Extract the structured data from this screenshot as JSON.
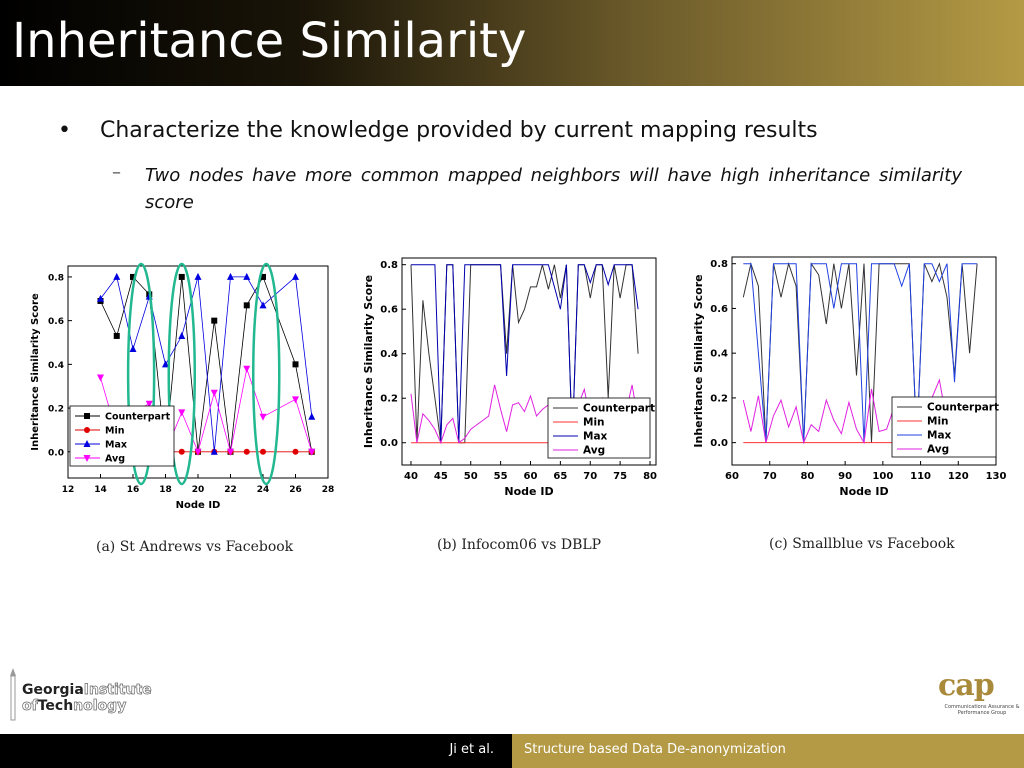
{
  "slide": {
    "title": "Inheritance Similarity",
    "bullet": "Characterize the knowledge provided by current mapping results",
    "bullet_marker": "•",
    "sub_bullet": "Two nodes have more common mapped neighbors will have high inheritance similarity score",
    "sub_bullet_marker": "–"
  },
  "footer": {
    "author": "Ji et al.",
    "title": "Structure based Data De-anonymization"
  },
  "logos": {
    "gt_line1_a": "Georgia",
    "gt_line1_b": "Institute",
    "gt_line2_a": "of",
    "gt_line2_b": "Tech",
    "gt_line2_c": "nology",
    "cap_word": "cap",
    "cap_sub": "Communications Assurance & Performance Group"
  },
  "chart_data": [
    {
      "type": "line",
      "caption": "(a)  St Andrews vs Facebook",
      "xlabel": "Node ID",
      "ylabel": "Inheritance Similarity Score",
      "xlim": [
        12,
        28
      ],
      "ylim": [
        -0.12,
        0.85
      ],
      "xticks": [
        12,
        14,
        16,
        18,
        20,
        22,
        24,
        26,
        28
      ],
      "yticks": [
        0.0,
        0.2,
        0.4,
        0.6,
        0.8
      ],
      "legend": "bottom-left",
      "highlight_ellipses_x": [
        16.5,
        19,
        24.2
      ],
      "series": [
        {
          "name": "Counterpart",
          "color": "#000000",
          "marker": "square",
          "x": [
            14,
            15,
            16,
            17,
            18,
            19,
            20,
            21,
            22,
            23,
            24,
            26,
            27
          ],
          "y": [
            0.69,
            0.53,
            0.8,
            0.72,
            0.0,
            0.8,
            0.0,
            0.6,
            0.0,
            0.67,
            0.8,
            0.4,
            0.0
          ]
        },
        {
          "name": "Min",
          "color": "#e00000",
          "marker": "circle",
          "x": [
            14,
            15,
            16,
            17,
            18,
            19,
            20,
            21,
            22,
            23,
            24,
            26,
            27
          ],
          "y": [
            0,
            0,
            0,
            0,
            0,
            0,
            0,
            0,
            0,
            0,
            0,
            0,
            0
          ]
        },
        {
          "name": "Max",
          "color": "#0000e0",
          "marker": "triangle",
          "x": [
            14,
            15,
            16,
            17,
            18,
            19,
            20,
            21,
            22,
            23,
            24,
            26,
            27
          ],
          "y": [
            0.7,
            0.8,
            0.47,
            0.71,
            0.4,
            0.53,
            0.8,
            0.0,
            0.8,
            0.8,
            0.67,
            0.8,
            0.16
          ]
        },
        {
          "name": "Avg",
          "color": "#ff00ff",
          "marker": "triangle-down",
          "x": [
            14,
            15,
            16,
            17,
            18,
            19,
            20,
            21,
            22,
            23,
            24,
            26,
            27
          ],
          "y": [
            0.34,
            0.08,
            0.18,
            0.22,
            0.0,
            0.18,
            0.0,
            0.27,
            0.0,
            0.38,
            0.16,
            0.24,
            0.0
          ]
        }
      ]
    },
    {
      "type": "line",
      "caption": "(b)  Infocom06 vs DBLP",
      "xlabel": "Node ID",
      "ylabel": "Inheritance Similarity Score",
      "xlim": [
        38.5,
        81
      ],
      "ylim": [
        -0.1,
        0.83
      ],
      "xticks": [
        40,
        45,
        50,
        55,
        60,
        65,
        70,
        75,
        80
      ],
      "yticks": [
        0.0,
        0.2,
        0.4,
        0.6,
        0.8
      ],
      "legend": "bottom-right",
      "series": [
        {
          "name": "Counterpart",
          "color": "#333333",
          "marker": "none",
          "x": [
            40,
            41,
            42,
            43,
            44,
            45,
            46,
            47,
            48,
            49,
            50,
            51,
            52,
            53,
            54,
            55,
            56,
            57,
            58,
            59,
            60,
            61,
            62,
            63,
            64,
            65,
            66,
            67,
            68,
            69,
            70,
            71,
            72,
            73,
            74,
            75,
            76,
            77,
            78
          ],
          "y": [
            0.8,
            0.0,
            0.64,
            0.4,
            0.2,
            0.0,
            0.8,
            0.8,
            0.0,
            0.0,
            0.8,
            0.8,
            0.8,
            0.8,
            0.8,
            0.8,
            0.4,
            0.8,
            0.54,
            0.6,
            0.7,
            0.7,
            0.8,
            0.69,
            0.8,
            0.65,
            0.8,
            0.0,
            0.8,
            0.8,
            0.65,
            0.8,
            0.8,
            0.2,
            0.8,
            0.65,
            0.8,
            0.8,
            0.4
          ]
        },
        {
          "name": "Min",
          "color": "#ff3030",
          "marker": "none",
          "x": [
            40,
            78
          ],
          "y": [
            0.0,
            0.0
          ]
        },
        {
          "name": "Max",
          "color": "#0000b0",
          "marker": "none",
          "x": [
            40,
            41,
            42,
            43,
            44,
            45,
            46,
            47,
            48,
            49,
            50,
            51,
            52,
            53,
            54,
            55,
            56,
            57,
            58,
            59,
            60,
            61,
            62,
            63,
            64,
            65,
            66,
            67,
            68,
            69,
            70,
            71,
            72,
            73,
            74,
            75,
            76,
            77,
            78
          ],
          "y": [
            0.8,
            0.8,
            0.8,
            0.8,
            0.8,
            0.0,
            0.8,
            0.8,
            0.0,
            0.8,
            0.8,
            0.8,
            0.8,
            0.8,
            0.8,
            0.8,
            0.3,
            0.8,
            0.8,
            0.8,
            0.8,
            0.8,
            0.8,
            0.8,
            0.7,
            0.6,
            0.8,
            0.0,
            0.8,
            0.8,
            0.72,
            0.8,
            0.8,
            0.71,
            0.8,
            0.8,
            0.8,
            0.8,
            0.6
          ]
        },
        {
          "name": "Avg",
          "color": "#e020e0",
          "marker": "none",
          "x": [
            40,
            41,
            42,
            43,
            44,
            45,
            46,
            47,
            48,
            49,
            50,
            51,
            52,
            53,
            54,
            55,
            56,
            57,
            58,
            59,
            60,
            61,
            62,
            63,
            64,
            65,
            66,
            67,
            68,
            69,
            70,
            71,
            72,
            73,
            74,
            75,
            76,
            77,
            78
          ],
          "y": [
            0.22,
            0.0,
            0.13,
            0.1,
            0.06,
            0.0,
            0.08,
            0.11,
            0.0,
            0.02,
            0.06,
            0.08,
            0.1,
            0.12,
            0.26,
            0.15,
            0.05,
            0.17,
            0.18,
            0.14,
            0.21,
            0.12,
            0.15,
            0.17,
            0.12,
            0.1,
            0.2,
            0.0,
            0.17,
            0.24,
            0.1,
            0.15,
            0.2,
            0.05,
            0.12,
            0.15,
            0.14,
            0.26,
            0.1
          ]
        }
      ]
    },
    {
      "type": "line",
      "caption": "(c)  Smallblue vs Facebook",
      "xlabel": "Node ID",
      "ylabel": "Inheritance Similarity Score",
      "xlim": [
        60,
        130
      ],
      "ylim": [
        -0.1,
        0.83
      ],
      "xticks": [
        60,
        70,
        80,
        90,
        100,
        110,
        120,
        130
      ],
      "yticks": [
        0.0,
        0.2,
        0.4,
        0.6,
        0.8
      ],
      "legend": "bottom-right",
      "series": [
        {
          "name": "Counterpart",
          "color": "#333333",
          "marker": "none",
          "x": [
            63,
            65,
            67,
            69,
            71,
            73,
            75,
            77,
            79,
            81,
            83,
            85,
            87,
            89,
            91,
            93,
            95,
            97,
            99,
            101,
            103,
            105,
            107,
            109,
            111,
            113,
            115,
            117,
            119,
            121,
            123,
            125
          ],
          "y": [
            0.65,
            0.8,
            0.7,
            0.0,
            0.8,
            0.65,
            0.8,
            0.7,
            0.0,
            0.8,
            0.75,
            0.53,
            0.8,
            0.6,
            0.8,
            0.3,
            0.8,
            0.0,
            0.8,
            0.8,
            0.8,
            0.8,
            0.8,
            0.0,
            0.8,
            0.72,
            0.8,
            0.65,
            0.3,
            0.8,
            0.4,
            0.8
          ]
        },
        {
          "name": "Min",
          "color": "#ff3030",
          "marker": "none",
          "x": [
            63,
            125
          ],
          "y": [
            0.0,
            0.0
          ]
        },
        {
          "name": "Max",
          "color": "#2040e0",
          "marker": "none",
          "x": [
            63,
            65,
            67,
            69,
            71,
            73,
            75,
            77,
            79,
            81,
            83,
            85,
            87,
            89,
            91,
            93,
            95,
            97,
            99,
            101,
            103,
            105,
            107,
            109,
            111,
            113,
            115,
            117,
            119,
            121,
            123,
            125
          ],
          "y": [
            0.8,
            0.8,
            0.4,
            0.0,
            0.8,
            0.8,
            0.8,
            0.8,
            0.0,
            0.8,
            0.8,
            0.8,
            0.6,
            0.8,
            0.8,
            0.8,
            0.0,
            0.8,
            0.8,
            0.8,
            0.8,
            0.7,
            0.8,
            0.0,
            0.8,
            0.8,
            0.72,
            0.8,
            0.27,
            0.8,
            0.8,
            0.8
          ]
        },
        {
          "name": "Avg",
          "color": "#e020e0",
          "marker": "none",
          "x": [
            63,
            65,
            67,
            69,
            71,
            73,
            75,
            77,
            79,
            81,
            83,
            85,
            87,
            89,
            91,
            93,
            95,
            97,
            99,
            101,
            103,
            105,
            107,
            109,
            111,
            113,
            115,
            117,
            119,
            121,
            123,
            125
          ],
          "y": [
            0.19,
            0.05,
            0.21,
            0.0,
            0.12,
            0.19,
            0.07,
            0.16,
            0.0,
            0.08,
            0.05,
            0.19,
            0.1,
            0.04,
            0.18,
            0.06,
            0.0,
            0.24,
            0.05,
            0.06,
            0.16,
            0.04,
            0.1,
            0.0,
            0.07,
            0.2,
            0.28,
            0.09,
            0.0,
            0.14,
            0.19,
            0.04
          ]
        }
      ]
    }
  ]
}
